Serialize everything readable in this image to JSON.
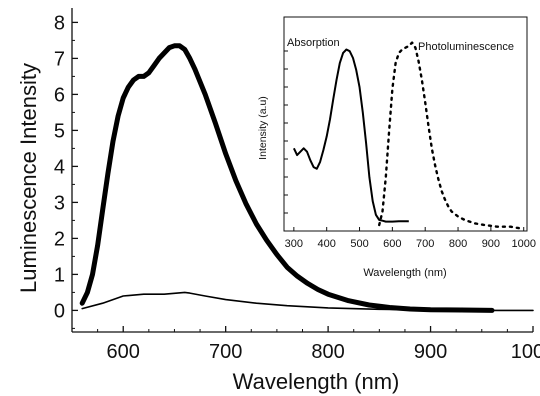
{
  "chart_data": [
    {
      "type": "line",
      "title": "",
      "xlabel": "Wavelength (nm)",
      "ylabel": "Luminescence Intensity",
      "xlim": [
        550,
        1000
      ],
      "ylim": [
        -0.6,
        8.4
      ],
      "xticks": [
        "600",
        "700",
        "800",
        "900",
        "1000"
      ],
      "yticks": [
        "0",
        "1",
        "2",
        "3",
        "4",
        "5",
        "6",
        "7",
        "8"
      ],
      "grid": false,
      "legend": "none",
      "series": [
        {
          "style": "thick",
          "x": [
            560,
            565,
            570,
            575,
            580,
            585,
            590,
            595,
            600,
            605,
            610,
            615,
            620,
            625,
            630,
            635,
            640,
            645,
            650,
            655,
            660,
            665,
            670,
            680,
            690,
            700,
            710,
            720,
            730,
            740,
            750,
            760,
            770,
            780,
            790,
            800,
            820,
            840,
            860,
            880,
            900,
            930,
            960
          ],
          "y": [
            0.2,
            0.5,
            1.0,
            1.8,
            2.8,
            3.8,
            4.7,
            5.4,
            5.9,
            6.2,
            6.4,
            6.5,
            6.5,
            6.6,
            6.8,
            7.0,
            7.15,
            7.3,
            7.35,
            7.35,
            7.25,
            7.0,
            6.7,
            6.0,
            5.2,
            4.35,
            3.6,
            2.95,
            2.4,
            1.95,
            1.55,
            1.2,
            0.95,
            0.75,
            0.58,
            0.45,
            0.27,
            0.15,
            0.08,
            0.04,
            0.02,
            0.01,
            0.0
          ]
        },
        {
          "style": "thin",
          "x": [
            560,
            580,
            600,
            620,
            640,
            660,
            665,
            680,
            700,
            730,
            760,
            800,
            850,
            900,
            950,
            1000
          ],
          "y": [
            0.05,
            0.2,
            0.4,
            0.45,
            0.45,
            0.5,
            0.48,
            0.4,
            0.3,
            0.2,
            0.13,
            0.07,
            0.03,
            0.01,
            0.0,
            0.0
          ]
        }
      ]
    },
    {
      "type": "line",
      "title": "",
      "xlabel": "Wavelength (nm)",
      "ylabel": "Intensity (a.u)",
      "xlim": [
        270,
        1010
      ],
      "ylim": [
        0,
        1.15
      ],
      "xticks": [
        "300",
        "400",
        "500",
        "600",
        "700",
        "800",
        "900",
        "1000"
      ],
      "grid": false,
      "annotations": [
        "Absorption",
        "Photoluminescence"
      ],
      "series": [
        {
          "style": "solid",
          "label": "Absorption",
          "x": [
            300,
            310,
            320,
            330,
            340,
            350,
            360,
            370,
            380,
            390,
            400,
            410,
            420,
            430,
            440,
            450,
            460,
            470,
            480,
            490,
            500,
            510,
            520,
            530,
            540,
            550,
            560,
            570,
            580,
            600,
            620,
            650
          ],
          "y": [
            0.45,
            0.41,
            0.43,
            0.45,
            0.43,
            0.38,
            0.34,
            0.33,
            0.37,
            0.44,
            0.52,
            0.62,
            0.74,
            0.85,
            0.95,
            1.01,
            1.03,
            1.02,
            0.98,
            0.91,
            0.81,
            0.66,
            0.48,
            0.28,
            0.14,
            0.06,
            0.03,
            0.025,
            0.02,
            0.02,
            0.022,
            0.022
          ]
        },
        {
          "style": "dotted",
          "label": "Photoluminescence",
          "x": [
            560,
            570,
            580,
            590,
            600,
            610,
            620,
            630,
            640,
            650,
            660,
            670,
            680,
            690,
            700,
            710,
            720,
            730,
            740,
            750,
            760,
            770,
            780,
            800,
            820,
            850,
            880,
            920,
            960,
            990
          ],
          "y": [
            0.0,
            0.08,
            0.28,
            0.55,
            0.8,
            0.95,
            1.01,
            1.03,
            1.04,
            1.05,
            1.07,
            1.04,
            0.96,
            0.85,
            0.72,
            0.58,
            0.45,
            0.35,
            0.27,
            0.2,
            0.15,
            0.11,
            0.08,
            0.05,
            0.03,
            0.01,
            0.0,
            -0.01,
            -0.01,
            -0.02
          ]
        }
      ]
    }
  ]
}
